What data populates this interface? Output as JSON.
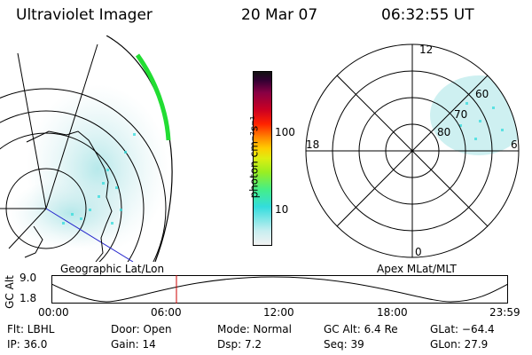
{
  "header": {
    "title": "Ultraviolet Imager",
    "date": "20 Mar 07",
    "time": "06:32:55 UT"
  },
  "colorbar": {
    "unit_label": "photon cm⁻²s⁻¹",
    "ticks": [
      "100",
      "10"
    ],
    "scale": "log"
  },
  "polar": {
    "mlt_labels": [
      "12",
      "18",
      "6",
      "0"
    ],
    "mlat_labels": [
      "60",
      "70",
      "80"
    ]
  },
  "panels": {
    "left_caption": "Geographic Lat/Lon",
    "right_caption": "Apex MLat/MLT"
  },
  "altitude_plot": {
    "ylabel": "GC Alt",
    "y_ticks": [
      "9.0",
      "1.8"
    ],
    "x_ticks": [
      "00:00",
      "06:00",
      "12:00",
      "18:00",
      "23:59"
    ],
    "marker_time": "06:32:55"
  },
  "status": {
    "filter": "Flt: LBHL",
    "door": "Door: Open",
    "mode": "Mode: Normal",
    "gc_alt": "GC Alt: 6.4 Re",
    "glat": "GLat: −64.4",
    "ip": "IP: 36.0",
    "gain": "Gain: 14",
    "dsp": "Dsp:     7.2",
    "seq": "Seq: 39",
    "glon": "GLon:  27.9"
  },
  "colors": {
    "marker": "#cc0000",
    "coastline": "#000000",
    "meridian_highlight": "#2222cc",
    "aurora_green": "#22dd33"
  }
}
